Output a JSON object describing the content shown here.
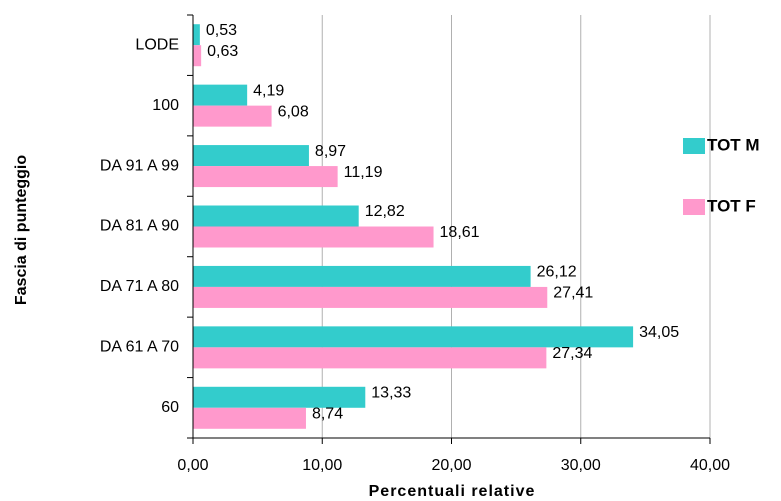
{
  "chart_data": {
    "type": "bar",
    "orientation": "horizontal",
    "xlabel": "Percentuali relative",
    "ylabel": "Fascia di punteggio",
    "categories": [
      "LODE",
      "100",
      "DA  91 A  99",
      "DA  81 A  90",
      "DA  71 A   80",
      "DA  61 A  70",
      "60"
    ],
    "series": [
      {
        "name": "TOT M",
        "color": "#33cccc",
        "values": [
          0.53,
          4.19,
          8.97,
          12.82,
          26.12,
          34.05,
          13.33
        ],
        "value_labels": [
          "0,53",
          "4,19",
          "8,97",
          "12,82",
          "26,12",
          "34,05",
          "13,33"
        ]
      },
      {
        "name": "TOT F",
        "color": "#ff99cc",
        "values": [
          0.63,
          6.08,
          11.19,
          18.61,
          27.41,
          27.34,
          8.74
        ],
        "value_labels": [
          "0,63",
          "6,08",
          "11,19",
          "18,61",
          "27,41",
          "27,34",
          "8,74"
        ]
      }
    ],
    "xlim": [
      0,
      40
    ],
    "xticks": [
      {
        "value": 0,
        "label": "0,00"
      },
      {
        "value": 10,
        "label": "10,00"
      },
      {
        "value": 20,
        "label": "20,00"
      },
      {
        "value": 30,
        "label": "30,00"
      },
      {
        "value": 40,
        "label": "40,00"
      }
    ],
    "grid": true,
    "legend": "right"
  }
}
